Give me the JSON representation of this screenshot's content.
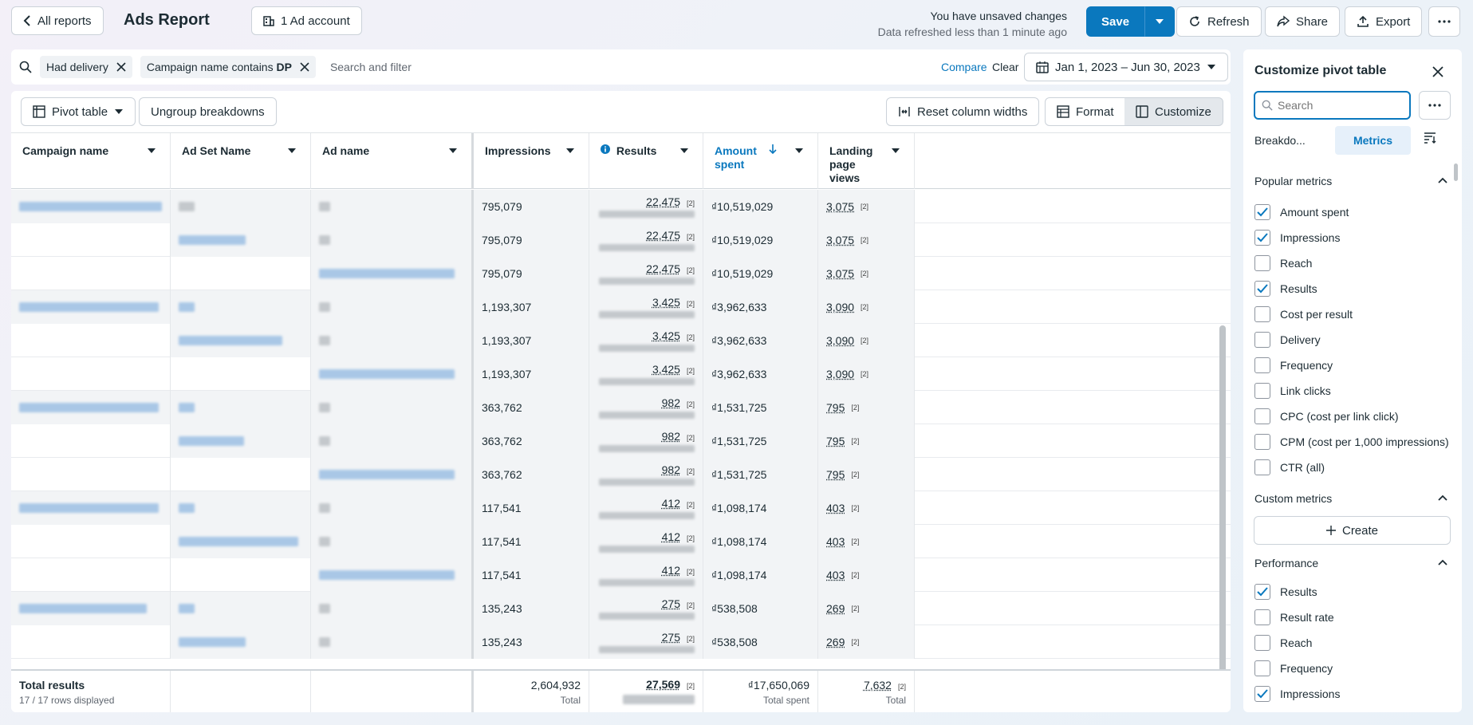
{
  "topbar": {
    "back_label": "All reports",
    "title": "Ads Report",
    "account_label": "1 Ad account",
    "unsaved": "You have unsaved changes",
    "refreshed": "Data refreshed less than 1 minute ago",
    "save_label": "Save",
    "refresh_label": "Refresh",
    "share_label": "Share",
    "export_label": "Export"
  },
  "filters": {
    "chip1": "Had delivery",
    "chip2_prefix": "Campaign name contains",
    "chip2_value": "DP",
    "placeholder": "Search and filter",
    "compare": "Compare",
    "clear": "Clear",
    "date_range": "Jan 1, 2023 – Jun 30, 2023"
  },
  "toolbar": {
    "pivot": "Pivot table",
    "ungroup": "Ungroup breakdowns",
    "reset": "Reset column widths",
    "format": "Format",
    "customize": "Customize"
  },
  "columns": {
    "campaign": "Campaign name",
    "adset": "Ad Set Name",
    "ad": "Ad name",
    "impressions": "Impressions",
    "results": "Results",
    "amount": "Amount spent",
    "landing": "Landing page views"
  },
  "rows": [
    {
      "impressions": "795,079",
      "results": "22,475",
      "amount": "₫10,519,029",
      "landing": "3,075"
    },
    {
      "impressions": "795,079",
      "results": "22,475",
      "amount": "₫10,519,029",
      "landing": "3,075"
    },
    {
      "impressions": "795,079",
      "results": "22,475",
      "amount": "₫10,519,029",
      "landing": "3,075"
    },
    {
      "impressions": "1,193,307",
      "results": "3,425",
      "amount": "₫3,962,633",
      "landing": "3,090"
    },
    {
      "impressions": "1,193,307",
      "results": "3,425",
      "amount": "₫3,962,633",
      "landing": "3,090"
    },
    {
      "impressions": "1,193,307",
      "results": "3,425",
      "amount": "₫3,962,633",
      "landing": "3,090"
    },
    {
      "impressions": "363,762",
      "results": "982",
      "amount": "₫1,531,725",
      "landing": "795"
    },
    {
      "impressions": "363,762",
      "results": "982",
      "amount": "₫1,531,725",
      "landing": "795"
    },
    {
      "impressions": "363,762",
      "results": "982",
      "amount": "₫1,531,725",
      "landing": "795"
    },
    {
      "impressions": "117,541",
      "results": "412",
      "amount": "₫1,098,174",
      "landing": "403"
    },
    {
      "impressions": "117,541",
      "results": "412",
      "amount": "₫1,098,174",
      "landing": "403"
    },
    {
      "impressions": "117,541",
      "results": "412",
      "amount": "₫1,098,174",
      "landing": "403"
    },
    {
      "impressions": "135,243",
      "results": "275",
      "amount": "₫538,508",
      "landing": "269"
    },
    {
      "impressions": "135,243",
      "results": "275",
      "amount": "₫538,508",
      "landing": "269"
    }
  ],
  "footnote": "[2]",
  "footer": {
    "title": "Total results",
    "subtitle": "17 / 17 rows displayed",
    "impressions": "2,604,932",
    "impressions_sub": "Total",
    "results": "27,569",
    "amount": "₫17,650,069",
    "amount_sub": "Total spent",
    "landing": "7,632",
    "landing_sub": "Total"
  },
  "customize": {
    "title": "Customize pivot table",
    "search_placeholder": "Search",
    "tab_breakdowns": "Breakdo...",
    "tab_metrics": "Metrics",
    "popular_title": "Popular metrics",
    "popular": [
      {
        "label": "Amount spent",
        "checked": true
      },
      {
        "label": "Impressions",
        "checked": true
      },
      {
        "label": "Reach",
        "checked": false
      },
      {
        "label": "Results",
        "checked": true
      },
      {
        "label": "Cost per result",
        "checked": false
      },
      {
        "label": "Delivery",
        "checked": false
      },
      {
        "label": "Frequency",
        "checked": false
      },
      {
        "label": "Link clicks",
        "checked": false
      },
      {
        "label": "CPC (cost per link click)",
        "checked": false
      },
      {
        "label": "CPM (cost per 1,000 impressions)",
        "checked": false
      },
      {
        "label": "CTR (all)",
        "checked": false
      }
    ],
    "custom_title": "Custom metrics",
    "create": "Create",
    "performance_title": "Performance",
    "performance": [
      {
        "label": "Results",
        "checked": true
      },
      {
        "label": "Result rate",
        "checked": false
      },
      {
        "label": "Reach",
        "checked": false
      },
      {
        "label": "Frequency",
        "checked": false
      },
      {
        "label": "Impressions",
        "checked": true
      }
    ]
  },
  "colors": {
    "accent": "#0a78be",
    "row_shade": "#f2f4f6"
  }
}
